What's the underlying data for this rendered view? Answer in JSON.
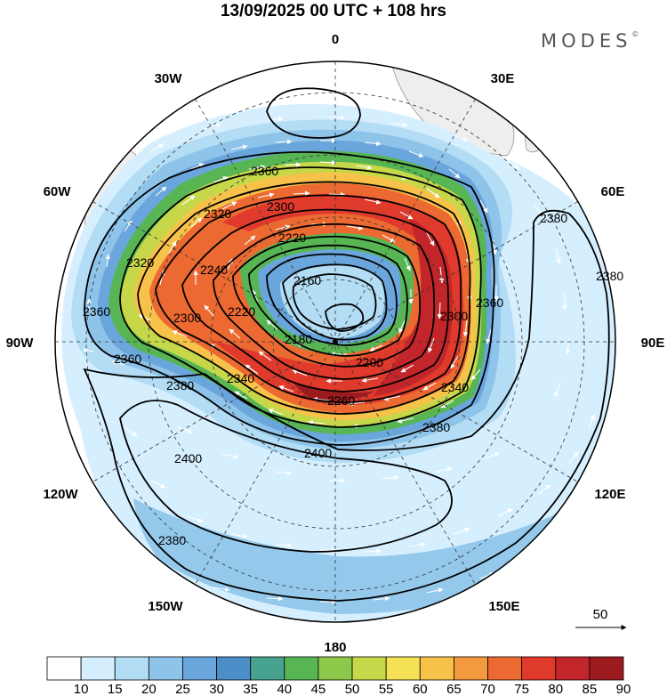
{
  "title": "13/09/2025  00 UTC  + 108 hrs",
  "brand": "MODES",
  "brand_mark": "©",
  "longitude_labels": {
    "top": "0",
    "top_right": "30E",
    "right_upper": "60E",
    "right": "90E",
    "right_lower": "120E",
    "bottom_right": "150E",
    "bottom": "180",
    "bottom_left": "150W",
    "left_lower": "120W",
    "left": "90W",
    "left_upper": "60W",
    "top_left": "30W"
  },
  "contour_labels": {
    "c1": "2360",
    "c2": "2320",
    "c3": "2300",
    "c4": "2220",
    "c5": "2380",
    "c6": "2380",
    "c7": "2320",
    "c8": "2240",
    "c9": "2160",
    "c10": "2360",
    "c11": "2300",
    "c12": "2220",
    "c13": "2180",
    "c14": "2300",
    "c15": "2360",
    "c16": "2200",
    "c17": "2340",
    "c18": "2360",
    "c19": "2380",
    "c20": "2340",
    "c21": "2260",
    "c22": "2380",
    "c23": "2400",
    "c24": "2400",
    "c25": "2380"
  },
  "reference_vector": {
    "label": "50"
  },
  "colorbar": {
    "ticks": [
      "10",
      "15",
      "20",
      "25",
      "30",
      "35",
      "40",
      "45",
      "50",
      "55",
      "60",
      "65",
      "70",
      "75",
      "80",
      "85",
      "90"
    ],
    "colors": [
      "#ffffff",
      "#d6efff",
      "#b3dcf5",
      "#8ec4ea",
      "#6aa6dc",
      "#4b8ec8",
      "#47a38f",
      "#58b554",
      "#8cc84a",
      "#c6d84a",
      "#f4e254",
      "#f7c24a",
      "#f39a3e",
      "#ec6a32",
      "#df3a2c",
      "#c2262a",
      "#9b1b1f"
    ]
  }
}
